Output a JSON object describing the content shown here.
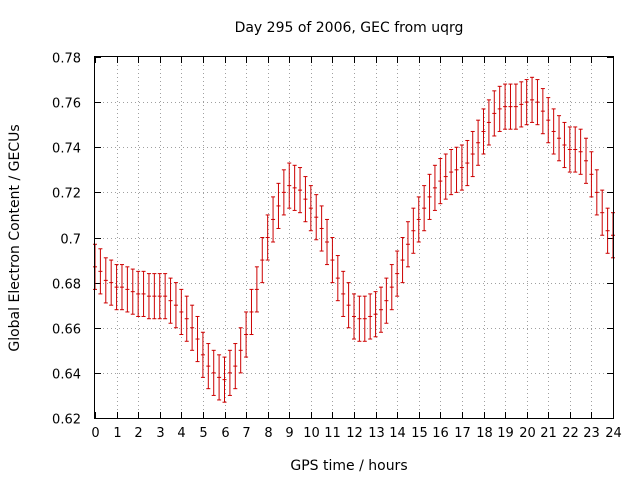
{
  "chart_data": {
    "type": "scatter",
    "title": "Day 295 of 2006, GEC from uqrg",
    "xlabel": "GPS time / hours",
    "ylabel": "Global Electron Content / GECUs",
    "xlim": [
      0,
      24
    ],
    "ylim": [
      0.62,
      0.78
    ],
    "x_ticks": [
      "0",
      "1",
      "2",
      "3",
      "4",
      "5",
      "6",
      "7",
      "8",
      "9",
      "10",
      "11",
      "12",
      "13",
      "14",
      "15",
      "16",
      "17",
      "18",
      "19",
      "20",
      "21",
      "22",
      "23",
      "24"
    ],
    "y_ticks": [
      "0.62",
      "0.64",
      "0.66",
      "0.68",
      "0.7",
      "0.72",
      "0.74",
      "0.76",
      "0.78"
    ],
    "grid": true,
    "error_color": "#cc0000",
    "series": [
      {
        "values": [
          {
            "x": 0.0,
            "y": 0.687,
            "e": 0.01
          },
          {
            "x": 0.25,
            "y": 0.685,
            "e": 0.01
          },
          {
            "x": 0.5,
            "y": 0.681,
            "e": 0.01
          },
          {
            "x": 0.75,
            "y": 0.68,
            "e": 0.01
          },
          {
            "x": 1.0,
            "y": 0.678,
            "e": 0.01
          },
          {
            "x": 1.25,
            "y": 0.678,
            "e": 0.01
          },
          {
            "x": 1.5,
            "y": 0.677,
            "e": 0.01
          },
          {
            "x": 1.75,
            "y": 0.676,
            "e": 0.01
          },
          {
            "x": 2.0,
            "y": 0.675,
            "e": 0.01
          },
          {
            "x": 2.25,
            "y": 0.675,
            "e": 0.01
          },
          {
            "x": 2.5,
            "y": 0.674,
            "e": 0.01
          },
          {
            "x": 2.75,
            "y": 0.674,
            "e": 0.01
          },
          {
            "x": 3.0,
            "y": 0.674,
            "e": 0.01
          },
          {
            "x": 3.25,
            "y": 0.674,
            "e": 0.01
          },
          {
            "x": 3.5,
            "y": 0.672,
            "e": 0.01
          },
          {
            "x": 3.75,
            "y": 0.67,
            "e": 0.01
          },
          {
            "x": 4.0,
            "y": 0.667,
            "e": 0.01
          },
          {
            "x": 4.25,
            "y": 0.664,
            "e": 0.01
          },
          {
            "x": 4.5,
            "y": 0.66,
            "e": 0.01
          },
          {
            "x": 4.75,
            "y": 0.655,
            "e": 0.01
          },
          {
            "x": 5.0,
            "y": 0.648,
            "e": 0.01
          },
          {
            "x": 5.25,
            "y": 0.643,
            "e": 0.01
          },
          {
            "x": 5.5,
            "y": 0.64,
            "e": 0.01
          },
          {
            "x": 5.75,
            "y": 0.638,
            "e": 0.01
          },
          {
            "x": 6.0,
            "y": 0.637,
            "e": 0.01
          },
          {
            "x": 6.25,
            "y": 0.64,
            "e": 0.01
          },
          {
            "x": 6.5,
            "y": 0.643,
            "e": 0.01
          },
          {
            "x": 6.75,
            "y": 0.65,
            "e": 0.01
          },
          {
            "x": 7.0,
            "y": 0.657,
            "e": 0.01
          },
          {
            "x": 7.25,
            "y": 0.667,
            "e": 0.01
          },
          {
            "x": 7.5,
            "y": 0.677,
            "e": 0.01
          },
          {
            "x": 7.75,
            "y": 0.69,
            "e": 0.01
          },
          {
            "x": 8.0,
            "y": 0.7,
            "e": 0.01
          },
          {
            "x": 8.25,
            "y": 0.708,
            "e": 0.01
          },
          {
            "x": 8.5,
            "y": 0.714,
            "e": 0.01
          },
          {
            "x": 8.75,
            "y": 0.72,
            "e": 0.01
          },
          {
            "x": 9.0,
            "y": 0.723,
            "e": 0.01
          },
          {
            "x": 9.25,
            "y": 0.722,
            "e": 0.01
          },
          {
            "x": 9.5,
            "y": 0.721,
            "e": 0.01
          },
          {
            "x": 9.75,
            "y": 0.717,
            "e": 0.01
          },
          {
            "x": 10.0,
            "y": 0.713,
            "e": 0.01
          },
          {
            "x": 10.25,
            "y": 0.709,
            "e": 0.01
          },
          {
            "x": 10.5,
            "y": 0.704,
            "e": 0.01
          },
          {
            "x": 10.75,
            "y": 0.698,
            "e": 0.01
          },
          {
            "x": 11.0,
            "y": 0.69,
            "e": 0.01
          },
          {
            "x": 11.25,
            "y": 0.682,
            "e": 0.01
          },
          {
            "x": 11.5,
            "y": 0.675,
            "e": 0.01
          },
          {
            "x": 11.75,
            "y": 0.67,
            "e": 0.01
          },
          {
            "x": 12.0,
            "y": 0.665,
            "e": 0.01
          },
          {
            "x": 12.25,
            "y": 0.664,
            "e": 0.01
          },
          {
            "x": 12.5,
            "y": 0.664,
            "e": 0.01
          },
          {
            "x": 12.75,
            "y": 0.665,
            "e": 0.01
          },
          {
            "x": 13.0,
            "y": 0.666,
            "e": 0.01
          },
          {
            "x": 13.25,
            "y": 0.668,
            "e": 0.01
          },
          {
            "x": 13.5,
            "y": 0.672,
            "e": 0.01
          },
          {
            "x": 13.75,
            "y": 0.678,
            "e": 0.01
          },
          {
            "x": 14.0,
            "y": 0.684,
            "e": 0.01
          },
          {
            "x": 14.25,
            "y": 0.69,
            "e": 0.01
          },
          {
            "x": 14.5,
            "y": 0.697,
            "e": 0.01
          },
          {
            "x": 14.75,
            "y": 0.703,
            "e": 0.01
          },
          {
            "x": 15.0,
            "y": 0.708,
            "e": 0.01
          },
          {
            "x": 15.25,
            "y": 0.713,
            "e": 0.01
          },
          {
            "x": 15.5,
            "y": 0.718,
            "e": 0.01
          },
          {
            "x": 15.75,
            "y": 0.722,
            "e": 0.01
          },
          {
            "x": 16.0,
            "y": 0.725,
            "e": 0.01
          },
          {
            "x": 16.25,
            "y": 0.727,
            "e": 0.01
          },
          {
            "x": 16.5,
            "y": 0.729,
            "e": 0.01
          },
          {
            "x": 16.75,
            "y": 0.73,
            "e": 0.01
          },
          {
            "x": 17.0,
            "y": 0.731,
            "e": 0.01
          },
          {
            "x": 17.25,
            "y": 0.733,
            "e": 0.01
          },
          {
            "x": 17.5,
            "y": 0.737,
            "e": 0.01
          },
          {
            "x": 17.75,
            "y": 0.742,
            "e": 0.01
          },
          {
            "x": 18.0,
            "y": 0.747,
            "e": 0.01
          },
          {
            "x": 18.25,
            "y": 0.751,
            "e": 0.01
          },
          {
            "x": 18.5,
            "y": 0.755,
            "e": 0.01
          },
          {
            "x": 18.75,
            "y": 0.757,
            "e": 0.01
          },
          {
            "x": 19.0,
            "y": 0.758,
            "e": 0.01
          },
          {
            "x": 19.25,
            "y": 0.758,
            "e": 0.01
          },
          {
            "x": 19.5,
            "y": 0.758,
            "e": 0.01
          },
          {
            "x": 19.75,
            "y": 0.759,
            "e": 0.01
          },
          {
            "x": 20.0,
            "y": 0.76,
            "e": 0.01
          },
          {
            "x": 20.25,
            "y": 0.761,
            "e": 0.01
          },
          {
            "x": 20.5,
            "y": 0.76,
            "e": 0.01
          },
          {
            "x": 20.75,
            "y": 0.756,
            "e": 0.01
          },
          {
            "x": 21.0,
            "y": 0.752,
            "e": 0.01
          },
          {
            "x": 21.25,
            "y": 0.747,
            "e": 0.01
          },
          {
            "x": 21.5,
            "y": 0.744,
            "e": 0.01
          },
          {
            "x": 21.75,
            "y": 0.741,
            "e": 0.01
          },
          {
            "x": 22.0,
            "y": 0.739,
            "e": 0.01
          },
          {
            "x": 22.25,
            "y": 0.739,
            "e": 0.01
          },
          {
            "x": 22.5,
            "y": 0.738,
            "e": 0.01
          },
          {
            "x": 22.75,
            "y": 0.734,
            "e": 0.01
          },
          {
            "x": 23.0,
            "y": 0.728,
            "e": 0.01
          },
          {
            "x": 23.25,
            "y": 0.72,
            "e": 0.01
          },
          {
            "x": 23.5,
            "y": 0.711,
            "e": 0.01
          },
          {
            "x": 23.75,
            "y": 0.703,
            "e": 0.01
          },
          {
            "x": 24.0,
            "y": 0.701,
            "e": 0.01
          }
        ]
      }
    ]
  }
}
